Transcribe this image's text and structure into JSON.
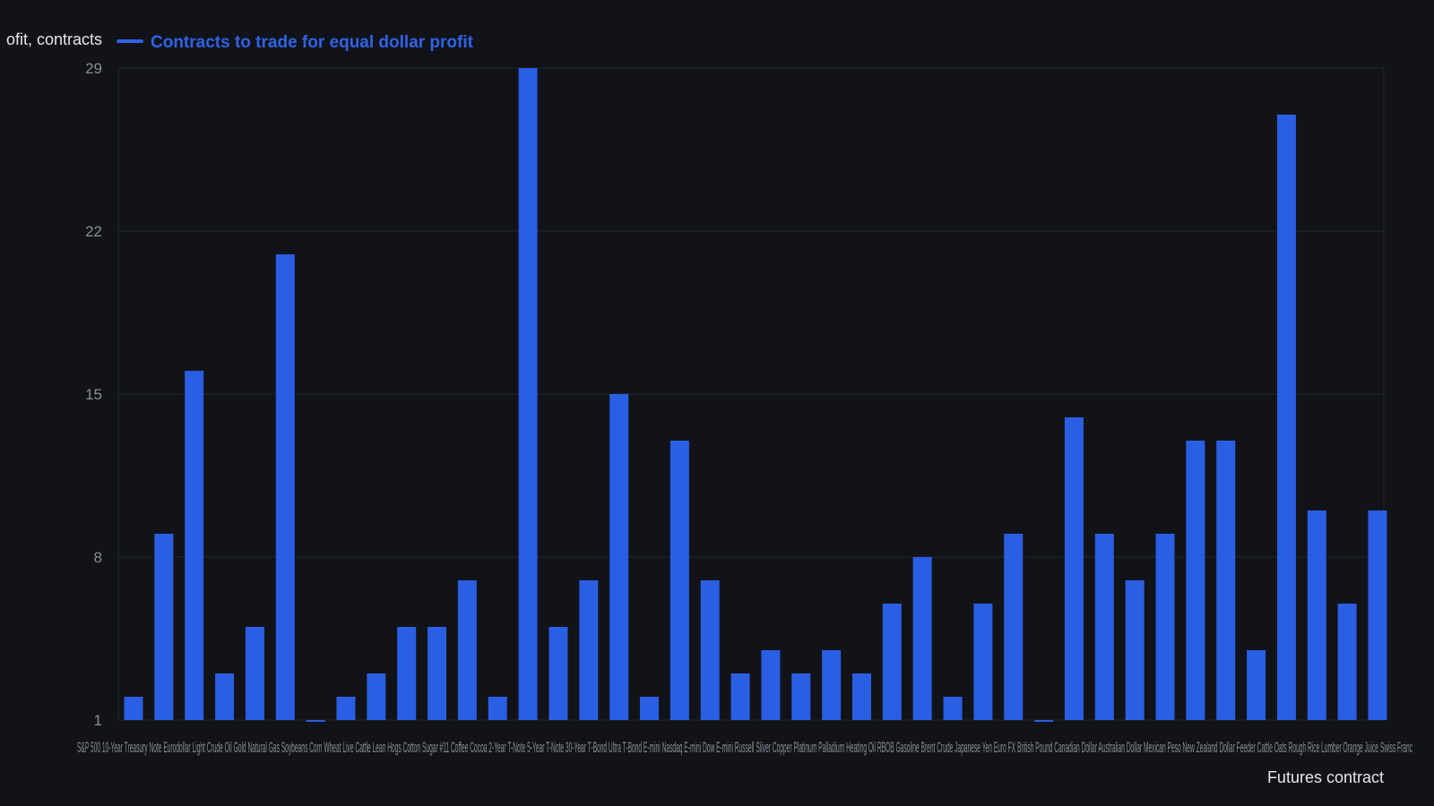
{
  "chart_data": {
    "type": "bar",
    "title": "",
    "ylabel": "ofit, contracts",
    "xlabel": "Futures contract",
    "legend": {
      "position": "top-left",
      "entries": [
        "Contracts to trade for equal dollar profit"
      ]
    },
    "series": [
      {
        "name": "Contracts to trade for equal dollar profit",
        "color": "#2a5ee3",
        "values": [
          2,
          9,
          16,
          3,
          5,
          21,
          1,
          2,
          3,
          5,
          5,
          7,
          2,
          29,
          5,
          7,
          15,
          2,
          13,
          7,
          3,
          4,
          3,
          4,
          3,
          6,
          8,
          2,
          6,
          9,
          1,
          14,
          9,
          7,
          9,
          13,
          13,
          4,
          27,
          10,
          6,
          10
        ]
      }
    ],
    "categories_visible": [
      "S&P 500",
      "Swiss Franc"
    ],
    "x_tick_text": "S&P 500 10-Year Treasury Note Eurodollar Light Crude Oil Gold Natural Gas Soybeans Corn Wheat Live Cattle Lean Hogs Cotton Sugar #11 Coffee Cocoa 2-Year T-Note 5-Year T-Note 30-Year T-Bond Ultra T-Bond E-mini Nasdaq E-mini Dow E-mini Russell Silver Copper Platinum Palladium Heating Oil RBOB Gasoline Brent Crude Japanese Yen Euro FX British Pound Canadian Dollar Australian Dollar Mexican Peso New Zealand Dollar Feeder Cattle Oats Rough Rice Lumber Orange Juice Swiss Franc",
    "yticks": [
      1,
      8,
      15,
      22,
      29
    ],
    "ylim": [
      1,
      29
    ],
    "grid": true
  }
}
